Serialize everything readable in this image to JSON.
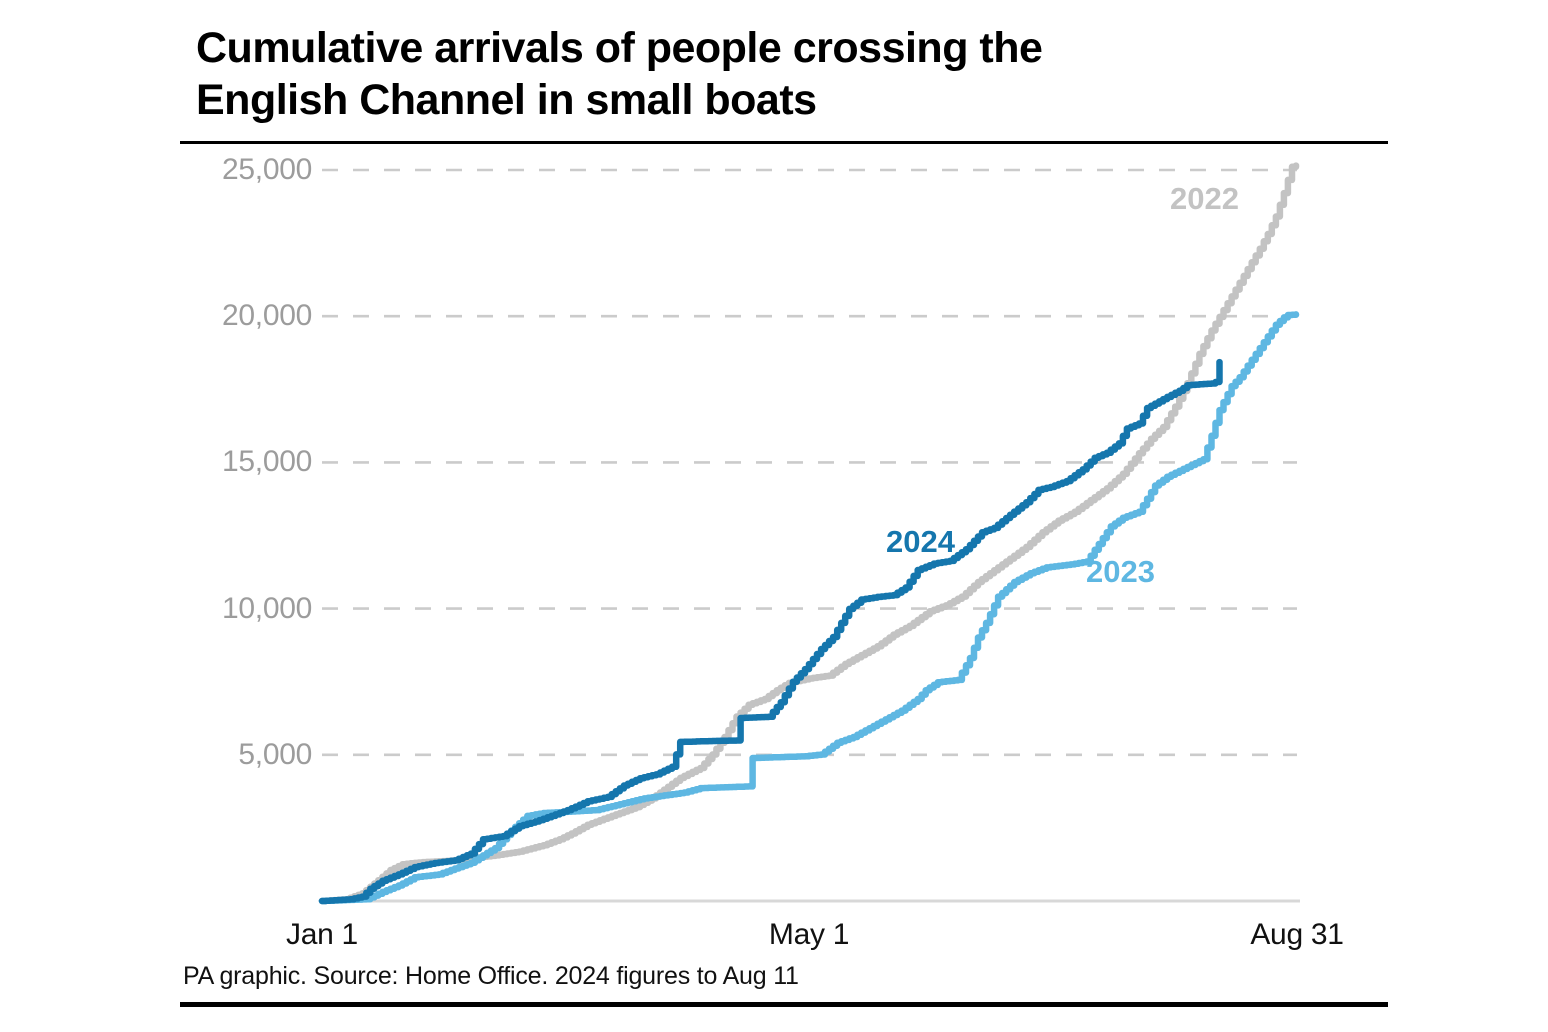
{
  "title": {
    "line1": "Cumulative arrivals of people crossing the",
    "line2": "English Channel in small boats"
  },
  "source_note": "PA graphic. Source: Home Office. 2024 figures to Aug 11",
  "chart_data": {
    "type": "line",
    "title": "Cumulative arrivals of people crossing the English Channel in small boats",
    "xlabel": "",
    "ylabel": "",
    "ylim": [
      0,
      25000
    ],
    "x_unit": "days since Jan 1",
    "x_range_days": 243,
    "grid": "dashed horizontal gridlines at 5,000 intervals",
    "legend_position": "labels inline next to lines",
    "y_tick_values": [
      5000,
      10000,
      15000,
      20000,
      25000
    ],
    "y_tick_labels_top_to_bottom": [
      "25,000",
      "20,000",
      "15,000",
      "10,000",
      "5,000"
    ],
    "x_ticks": [
      {
        "label": "Jan 1",
        "day": 0
      },
      {
        "label": "May 1",
        "day": 121
      },
      {
        "label": "Aug 31",
        "day": 243
      }
    ],
    "series": [
      {
        "name": "2022",
        "color": "#c3c3c3",
        "final_value": 25150,
        "points": [
          [
            0,
            0
          ],
          [
            6,
            60
          ],
          [
            10,
            260
          ],
          [
            14,
            710
          ],
          [
            17,
            1060
          ],
          [
            20,
            1260
          ],
          [
            25,
            1330
          ],
          [
            31,
            1370
          ],
          [
            37,
            1460
          ],
          [
            43,
            1560
          ],
          [
            49,
            1690
          ],
          [
            55,
            1910
          ],
          [
            59,
            2110
          ],
          [
            62,
            2310
          ],
          [
            66,
            2610
          ],
          [
            70,
            2810
          ],
          [
            74,
            3010
          ],
          [
            78,
            3210
          ],
          [
            82,
            3510
          ],
          [
            86,
            3910
          ],
          [
            89,
            4210
          ],
          [
            94,
            4550
          ],
          [
            97,
            5010
          ],
          [
            100,
            5610
          ],
          [
            103,
            6310
          ],
          [
            106,
            6710
          ],
          [
            110,
            6910
          ],
          [
            113,
            7210
          ],
          [
            116,
            7460
          ],
          [
            121,
            7610
          ],
          [
            126,
            7710
          ],
          [
            130,
            8110
          ],
          [
            134,
            8410
          ],
          [
            138,
            8710
          ],
          [
            142,
            9110
          ],
          [
            146,
            9410
          ],
          [
            151,
            9910
          ],
          [
            155,
            10110
          ],
          [
            159,
            10410
          ],
          [
            163,
            10910
          ],
          [
            167,
            11310
          ],
          [
            171,
            11710
          ],
          [
            175,
            12110
          ],
          [
            179,
            12610
          ],
          [
            183,
            13010
          ],
          [
            187,
            13310
          ],
          [
            191,
            13710
          ],
          [
            195,
            14110
          ],
          [
            199,
            14610
          ],
          [
            203,
            15310
          ],
          [
            206,
            15810
          ],
          [
            209,
            16210
          ],
          [
            212,
            16910
          ],
          [
            215,
            17710
          ],
          [
            218,
            18710
          ],
          [
            221,
            19510
          ],
          [
            224,
            20210
          ],
          [
            227,
            20910
          ],
          [
            230,
            21610
          ],
          [
            233,
            22310
          ],
          [
            235,
            22810
          ],
          [
            237,
            23410
          ],
          [
            239,
            24210
          ],
          [
            241,
            25110
          ],
          [
            242,
            25150
          ]
        ]
      },
      {
        "name": "2023",
        "color": "#5eb7e2",
        "final_value": 20060,
        "points": [
          [
            0,
            0
          ],
          [
            11,
            60
          ],
          [
            15,
            310
          ],
          [
            19,
            530
          ],
          [
            23,
            810
          ],
          [
            29,
            910
          ],
          [
            33,
            1110
          ],
          [
            37,
            1310
          ],
          [
            43,
            1810
          ],
          [
            47,
            2410
          ],
          [
            51,
            2910
          ],
          [
            55,
            3010
          ],
          [
            62,
            3060
          ],
          [
            68,
            3110
          ],
          [
            74,
            3310
          ],
          [
            80,
            3510
          ],
          [
            85,
            3610
          ],
          [
            90,
            3710
          ],
          [
            94,
            3860
          ],
          [
            106,
            3920
          ],
          [
            107,
            4890
          ],
          [
            120,
            4950
          ],
          [
            124,
            5010
          ],
          [
            128,
            5410
          ],
          [
            132,
            5610
          ],
          [
            136,
            5910
          ],
          [
            140,
            6210
          ],
          [
            144,
            6510
          ],
          [
            148,
            6910
          ],
          [
            150,
            7210
          ],
          [
            153,
            7480
          ],
          [
            158,
            7560
          ],
          [
            161,
            8310
          ],
          [
            163,
            9010
          ],
          [
            165,
            9510
          ],
          [
            168,
            10410
          ],
          [
            172,
            10910
          ],
          [
            176,
            11210
          ],
          [
            180,
            11410
          ],
          [
            186,
            11510
          ],
          [
            190,
            11610
          ],
          [
            193,
            12210
          ],
          [
            196,
            12810
          ],
          [
            199,
            13110
          ],
          [
            203,
            13310
          ],
          [
            207,
            14210
          ],
          [
            210,
            14510
          ],
          [
            213,
            14710
          ],
          [
            219,
            15110
          ],
          [
            221,
            15910
          ],
          [
            223,
            16790
          ],
          [
            226,
            17610
          ],
          [
            228,
            17910
          ],
          [
            230,
            18310
          ],
          [
            233,
            18910
          ],
          [
            235,
            19310
          ],
          [
            237,
            19710
          ],
          [
            239,
            19960
          ],
          [
            240,
            20040
          ],
          [
            242,
            20060
          ]
        ]
      },
      {
        "name": "2024",
        "color": "#1576ad",
        "final_value": 18430,
        "points": [
          [
            0,
            0
          ],
          [
            7,
            60
          ],
          [
            10,
            150
          ],
          [
            12,
            420
          ],
          [
            15,
            690
          ],
          [
            19,
            910
          ],
          [
            23,
            1160
          ],
          [
            28,
            1300
          ],
          [
            33,
            1390
          ],
          [
            37,
            1620
          ],
          [
            40,
            2110
          ],
          [
            45,
            2220
          ],
          [
            49,
            2560
          ],
          [
            53,
            2720
          ],
          [
            57,
            2910
          ],
          [
            61,
            3110
          ],
          [
            66,
            3410
          ],
          [
            71,
            3560
          ],
          [
            75,
            3950
          ],
          [
            79,
            4200
          ],
          [
            83,
            4330
          ],
          [
            87,
            4590
          ],
          [
            89,
            5440
          ],
          [
            96,
            5470
          ],
          [
            103,
            5490
          ],
          [
            104,
            6260
          ],
          [
            111,
            6300
          ],
          [
            114,
            6800
          ],
          [
            117,
            7500
          ],
          [
            120,
            7930
          ],
          [
            124,
            8620
          ],
          [
            127,
            9030
          ],
          [
            131,
            9990
          ],
          [
            134,
            10310
          ],
          [
            138,
            10400
          ],
          [
            142,
            10460
          ],
          [
            145,
            10720
          ],
          [
            148,
            11320
          ],
          [
            152,
            11540
          ],
          [
            156,
            11630
          ],
          [
            160,
            12030
          ],
          [
            164,
            12610
          ],
          [
            167,
            12760
          ],
          [
            171,
            13210
          ],
          [
            175,
            13640
          ],
          [
            178,
            14060
          ],
          [
            181,
            14160
          ],
          [
            185,
            14360
          ],
          [
            189,
            14760
          ],
          [
            192,
            15160
          ],
          [
            195,
            15330
          ],
          [
            198,
            15650
          ],
          [
            200,
            16160
          ],
          [
            203,
            16330
          ],
          [
            205,
            16860
          ],
          [
            207,
            17010
          ],
          [
            210,
            17240
          ],
          [
            213,
            17450
          ],
          [
            215,
            17640
          ],
          [
            221,
            17700
          ],
          [
            222,
            17750
          ],
          [
            223,
            18430
          ]
        ]
      }
    ],
    "style": {
      "gridline_color": "#cbcbcb",
      "baseline_color": "#d8d8d8",
      "y_label_color": "#9c9c9c",
      "x_label_color": "#111111",
      "title_color": "#000000"
    }
  }
}
